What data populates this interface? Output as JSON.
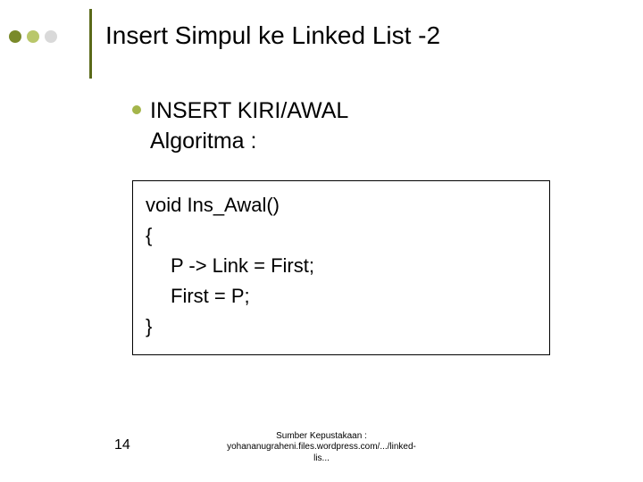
{
  "colors": {
    "dot1": "#7a8a2a",
    "dot2": "#b9c76a",
    "dot3": "#d9d9d9",
    "vline": "#5a6a1a",
    "title": "#000000",
    "small_bullet": "#a4b54a",
    "code_border": "#000000",
    "code_text": "#000000",
    "page_num": "#000000",
    "footer": "#000000"
  },
  "title": "Insert Simpul ke Linked List -2",
  "subheading": {
    "line1": "INSERT KIRI/AWAL",
    "line2": "Algoritma :"
  },
  "code": {
    "l1": "void Ins_Awal()",
    "l2": "{",
    "l3": "P -> Link = First;",
    "l4": "First = P;",
    "l5": "}"
  },
  "page_number": "14",
  "footer": {
    "l1": "Sumber Kepustakaan :",
    "l2": "yohananugraheni.files.wordpress.com/.../linked-",
    "l3": "lis..."
  }
}
